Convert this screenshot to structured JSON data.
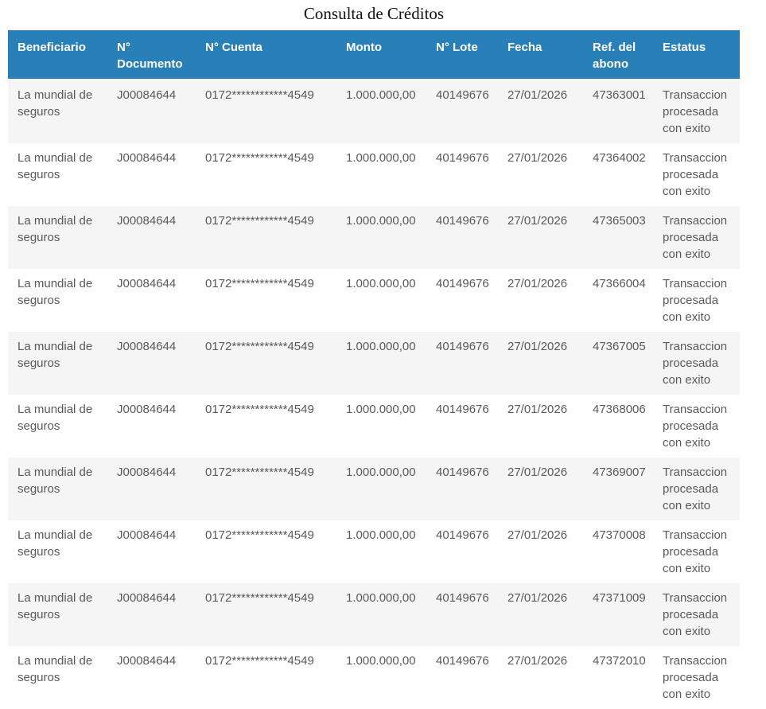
{
  "page": {
    "title": "Consulta de Créditos"
  },
  "table": {
    "columns": [
      {
        "key": "beneficiario",
        "label": "Beneficiario"
      },
      {
        "key": "documento",
        "label": "N° Documento"
      },
      {
        "key": "cuenta",
        "label": "N° Cuenta"
      },
      {
        "key": "monto",
        "label": "Monto"
      },
      {
        "key": "lote",
        "label": "N° Lote"
      },
      {
        "key": "fecha",
        "label": "Fecha"
      },
      {
        "key": "ref_abono",
        "label": "Ref. del abono"
      },
      {
        "key": "estatus",
        "label": "Estatus"
      }
    ],
    "rows": [
      {
        "beneficiario": "La mundial de seguros",
        "documento": "J00084644",
        "cuenta": "0172************4549",
        "monto": "1.000.000,00",
        "lote": "40149676",
        "fecha": "27/01/2026",
        "ref_abono": "47363001",
        "estatus": "Transaccion procesada con exito"
      },
      {
        "beneficiario": "La mundial de seguros",
        "documento": "J00084644",
        "cuenta": "0172************4549",
        "monto": "1.000.000,00",
        "lote": "40149676",
        "fecha": "27/01/2026",
        "ref_abono": "47364002",
        "estatus": "Transaccion procesada con exito"
      },
      {
        "beneficiario": "La mundial de seguros",
        "documento": "J00084644",
        "cuenta": "0172************4549",
        "monto": "1.000.000,00",
        "lote": "40149676",
        "fecha": "27/01/2026",
        "ref_abono": "47365003",
        "estatus": "Transaccion procesada con exito"
      },
      {
        "beneficiario": "La mundial de seguros",
        "documento": "J00084644",
        "cuenta": "0172************4549",
        "monto": "1.000.000,00",
        "lote": "40149676",
        "fecha": "27/01/2026",
        "ref_abono": "47366004",
        "estatus": "Transaccion procesada con exito"
      },
      {
        "beneficiario": "La mundial de seguros",
        "documento": "J00084644",
        "cuenta": "0172************4549",
        "monto": "1.000.000,00",
        "lote": "40149676",
        "fecha": "27/01/2026",
        "ref_abono": "47367005",
        "estatus": "Transaccion procesada con exito"
      },
      {
        "beneficiario": "La mundial de seguros",
        "documento": "J00084644",
        "cuenta": "0172************4549",
        "monto": "1.000.000,00",
        "lote": "40149676",
        "fecha": "27/01/2026",
        "ref_abono": "47368006",
        "estatus": "Transaccion procesada con exito"
      },
      {
        "beneficiario": "La mundial de seguros",
        "documento": "J00084644",
        "cuenta": "0172************4549",
        "monto": "1.000.000,00",
        "lote": "40149676",
        "fecha": "27/01/2026",
        "ref_abono": "47369007",
        "estatus": "Transaccion procesada con exito"
      },
      {
        "beneficiario": "La mundial de seguros",
        "documento": "J00084644",
        "cuenta": "0172************4549",
        "monto": "1.000.000,00",
        "lote": "40149676",
        "fecha": "27/01/2026",
        "ref_abono": "47370008",
        "estatus": "Transaccion procesada con exito"
      },
      {
        "beneficiario": "La mundial de seguros",
        "documento": "J00084644",
        "cuenta": "0172************4549",
        "monto": "1.000.000,00",
        "lote": "40149676",
        "fecha": "27/01/2026",
        "ref_abono": "47371009",
        "estatus": "Transaccion procesada con exito"
      },
      {
        "beneficiario": "La mundial de seguros",
        "documento": "J00084644",
        "cuenta": "0172************4549",
        "monto": "1.000.000,00",
        "lote": "40149676",
        "fecha": "27/01/2026",
        "ref_abono": "47372010",
        "estatus": "Transaccion procesada con exito"
      }
    ]
  },
  "colors": {
    "header_bg": "#2980b9",
    "header_text": "#ffffff",
    "row_alt_bg": "#f5f5f5",
    "row_bg": "#ffffff",
    "cell_text": "#58595b",
    "title_text": "#111111"
  }
}
